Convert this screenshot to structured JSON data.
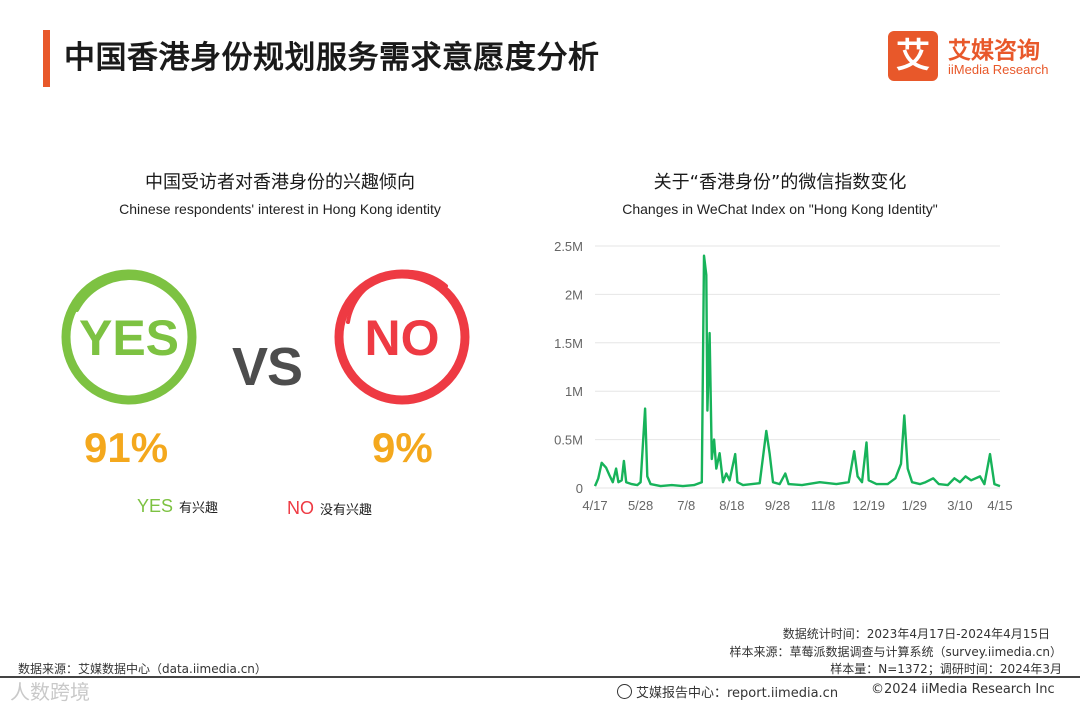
{
  "header": {
    "title": "中国香港身份规划服务需求意愿度分析"
  },
  "logo": {
    "glyph": "艾",
    "name_cn": "艾媒咨询",
    "name_en": "iiMedia Research"
  },
  "left_panel": {
    "title": "中国受访者对香港身份的兴趣倾向",
    "subtitle": "Chinese respondents' interest in Hong Kong identity",
    "yes_text": "YES",
    "no_text": "NO",
    "vs_text": "VS",
    "yes_pct": "91%",
    "no_pct": "9%",
    "legend_yes_key": "YES",
    "legend_yes_label": "有兴趣",
    "legend_no_key": "NO",
    "legend_no_label": "没有兴趣",
    "colors": {
      "yes": "#7dc242",
      "no": "#ee3a43",
      "pct": "#f4a81d"
    }
  },
  "right_panel": {
    "title": "关于“香港身份”的微信指数变化",
    "subtitle": "Changes in WeChat Index on \"Hong Kong Identity\""
  },
  "chart_data": [
    {
      "type": "pie",
      "title": "中国受访者对香港身份的兴趣倾向",
      "categories": [
        "YES 有兴趣",
        "NO 没有兴趣"
      ],
      "values": [
        91,
        9
      ],
      "unit": "%"
    },
    {
      "type": "line",
      "title": "关于“香港身份”的微信指数变化",
      "color": "#17b35a",
      "ylim": [
        0,
        2500000
      ],
      "y_ticks": [
        {
          "value": 0,
          "label": "0"
        },
        {
          "value": 500000,
          "label": "0.5M"
        },
        {
          "value": 1000000,
          "label": "1M"
        },
        {
          "value": 1500000,
          "label": "1.5M"
        },
        {
          "value": 2000000,
          "label": "2M"
        },
        {
          "value": 2500000,
          "label": "2.5M"
        }
      ],
      "x_range": [
        "2023-04-17",
        "2024-04-15"
      ],
      "x_ticks": [
        {
          "date": "2023-04-17",
          "label": "4/17"
        },
        {
          "date": "2023-05-28",
          "label": "5/28"
        },
        {
          "date": "2023-07-08",
          "label": "7/8"
        },
        {
          "date": "2023-08-18",
          "label": "8/18"
        },
        {
          "date": "2023-09-28",
          "label": "9/28"
        },
        {
          "date": "2023-11-08",
          "label": "11/8"
        },
        {
          "date": "2023-12-19",
          "label": "12/19"
        },
        {
          "date": "2024-01-29",
          "label": "1/29"
        },
        {
          "date": "2024-03-10",
          "label": "3/10"
        },
        {
          "date": "2024-04-15",
          "label": "4/15"
        }
      ],
      "grid": true,
      "points": [
        [
          "2023-04-17",
          20000
        ],
        [
          "2023-04-20",
          100000
        ],
        [
          "2023-04-23",
          260000
        ],
        [
          "2023-04-27",
          210000
        ],
        [
          "2023-04-30",
          130000
        ],
        [
          "2023-05-03",
          60000
        ],
        [
          "2023-05-06",
          200000
        ],
        [
          "2023-05-08",
          60000
        ],
        [
          "2023-05-11",
          80000
        ],
        [
          "2023-05-13",
          280000
        ],
        [
          "2023-05-15",
          60000
        ],
        [
          "2023-05-20",
          40000
        ],
        [
          "2023-05-25",
          30000
        ],
        [
          "2023-05-28",
          60000
        ],
        [
          "2023-06-01",
          820000
        ],
        [
          "2023-06-03",
          120000
        ],
        [
          "2023-06-06",
          40000
        ],
        [
          "2023-06-15",
          20000
        ],
        [
          "2023-06-25",
          30000
        ],
        [
          "2023-07-05",
          20000
        ],
        [
          "2023-07-15",
          30000
        ],
        [
          "2023-07-22",
          60000
        ],
        [
          "2023-07-24",
          2400000
        ],
        [
          "2023-07-26",
          2200000
        ],
        [
          "2023-07-27",
          800000
        ],
        [
          "2023-07-29",
          1600000
        ],
        [
          "2023-07-31",
          300000
        ],
        [
          "2023-08-02",
          500000
        ],
        [
          "2023-08-04",
          200000
        ],
        [
          "2023-08-07",
          360000
        ],
        [
          "2023-08-10",
          60000
        ],
        [
          "2023-08-13",
          150000
        ],
        [
          "2023-08-16",
          80000
        ],
        [
          "2023-08-21",
          350000
        ],
        [
          "2023-08-23",
          60000
        ],
        [
          "2023-08-28",
          30000
        ],
        [
          "2023-09-05",
          40000
        ],
        [
          "2023-09-12",
          50000
        ],
        [
          "2023-09-18",
          590000
        ],
        [
          "2023-09-21",
          350000
        ],
        [
          "2023-09-24",
          60000
        ],
        [
          "2023-09-30",
          40000
        ],
        [
          "2023-10-05",
          150000
        ],
        [
          "2023-10-08",
          40000
        ],
        [
          "2023-10-20",
          30000
        ],
        [
          "2023-11-05",
          60000
        ],
        [
          "2023-11-20",
          40000
        ],
        [
          "2023-12-01",
          60000
        ],
        [
          "2023-12-06",
          380000
        ],
        [
          "2023-12-09",
          120000
        ],
        [
          "2023-12-13",
          60000
        ],
        [
          "2023-12-17",
          470000
        ],
        [
          "2023-12-19",
          80000
        ],
        [
          "2023-12-26",
          40000
        ],
        [
          "2024-01-05",
          40000
        ],
        [
          "2024-01-12",
          100000
        ],
        [
          "2024-01-17",
          250000
        ],
        [
          "2024-01-20",
          750000
        ],
        [
          "2024-01-23",
          200000
        ],
        [
          "2024-01-27",
          60000
        ],
        [
          "2024-02-03",
          40000
        ],
        [
          "2024-02-08",
          60000
        ],
        [
          "2024-02-15",
          100000
        ],
        [
          "2024-02-20",
          40000
        ],
        [
          "2024-02-28",
          30000
        ],
        [
          "2024-03-05",
          100000
        ],
        [
          "2024-03-10",
          60000
        ],
        [
          "2024-03-15",
          120000
        ],
        [
          "2024-03-20",
          80000
        ],
        [
          "2024-03-28",
          120000
        ],
        [
          "2024-04-01",
          40000
        ],
        [
          "2024-04-06",
          350000
        ],
        [
          "2024-04-10",
          40000
        ],
        [
          "2024-04-15",
          20000
        ]
      ]
    }
  ],
  "footer": {
    "stat_time": "数据统计时间：2023年4月17日-2024年4月15日",
    "sample_source": "样本来源：草莓派数据调查与计算系统（survey.iimedia.cn）",
    "sample_size": "样本量：N=1372；调研时间：2024年3月",
    "data_source": "数据来源：艾媒数据中心（data.iimedia.cn）",
    "report_center": "艾媒报告中心：report.iimedia.cn",
    "copyright": "©2024  iiMedia Research  Inc",
    "watermark": "人数跨境"
  }
}
